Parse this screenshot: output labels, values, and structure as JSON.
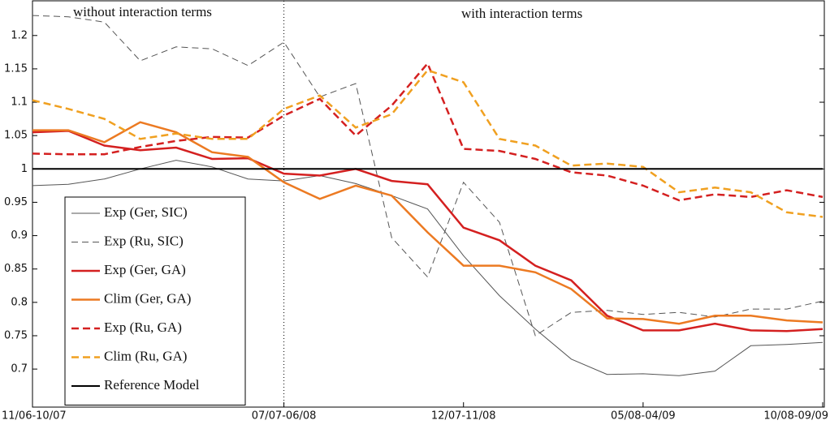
{
  "chart_data": {
    "type": "line",
    "annotations": [
      "without interaction terms",
      "with interaction terms"
    ],
    "categories": [
      "11/06-10/07",
      null,
      null,
      null,
      null,
      null,
      null,
      "07/07-06/08",
      null,
      null,
      null,
      null,
      "12/07-11/08",
      null,
      null,
      null,
      null,
      "05/08-04/09",
      null,
      null,
      null,
      null,
      "10/08-09/09"
    ],
    "series": [
      {
        "name": "Exp (Ger, SIC)",
        "color": "#555555",
        "style": "solid",
        "linewidth": 1,
        "values": [
          0.975,
          0.977,
          0.985,
          1.0,
          1.013,
          1.003,
          0.985,
          0.982,
          0.99,
          0.978,
          0.96,
          0.94,
          0.87,
          0.81,
          0.76,
          0.715,
          0.692,
          0.693,
          0.69,
          0.697,
          0.735,
          0.737,
          0.74
        ]
      },
      {
        "name": "Exp (Ru, SIC)",
        "color": "#555555",
        "style": "dashed",
        "linewidth": 1,
        "values": [
          1.23,
          1.228,
          1.22,
          1.162,
          1.183,
          1.18,
          1.155,
          1.19,
          1.108,
          1.128,
          0.897,
          0.838,
          0.98,
          0.92,
          0.75,
          0.785,
          0.788,
          0.782,
          0.785,
          0.778,
          0.79,
          0.79,
          0.802
        ]
      },
      {
        "name": "Exp (Ger, GA)",
        "color": "#d42020",
        "style": "solid",
        "linewidth": 2.5,
        "values": [
          1.055,
          1.057,
          1.035,
          1.028,
          1.032,
          1.015,
          1.016,
          0.993,
          0.99,
          1.0,
          0.982,
          0.977,
          0.912,
          0.893,
          0.855,
          0.833,
          0.78,
          0.758,
          0.758,
          0.768,
          0.758,
          0.757,
          0.76
        ]
      },
      {
        "name": "Clim (Ger, GA)",
        "color": "#ec7a22",
        "style": "solid",
        "linewidth": 2.5,
        "values": [
          1.058,
          1.058,
          1.04,
          1.07,
          1.055,
          1.025,
          1.018,
          0.98,
          0.955,
          0.975,
          0.96,
          0.905,
          0.855,
          0.855,
          0.845,
          0.82,
          0.776,
          0.775,
          0.768,
          0.78,
          0.78,
          0.773,
          0.77
        ]
      },
      {
        "name": "Exp (Ru, GA)",
        "color": "#d42020",
        "style": "dashed",
        "linewidth": 2.5,
        "values": [
          1.023,
          1.022,
          1.022,
          1.033,
          1.042,
          1.048,
          1.047,
          1.08,
          1.105,
          1.05,
          1.095,
          1.158,
          1.03,
          1.027,
          1.015,
          0.995,
          0.99,
          0.975,
          0.953,
          0.962,
          0.958,
          0.968,
          0.958
        ]
      },
      {
        "name": "Clim (Ru, GA)",
        "color": "#f0a020",
        "style": "dashed",
        "linewidth": 2.5,
        "values": [
          1.103,
          1.09,
          1.075,
          1.045,
          1.053,
          1.045,
          1.045,
          1.09,
          1.11,
          1.062,
          1.082,
          1.148,
          1.13,
          1.045,
          1.035,
          1.005,
          1.008,
          1.003,
          0.965,
          0.972,
          0.965,
          0.935,
          0.928
        ]
      },
      {
        "name": "Reference Model",
        "color": "#000000",
        "style": "solid",
        "linewidth": 2,
        "values": [
          1,
          1,
          1,
          1,
          1,
          1,
          1,
          1,
          1,
          1,
          1,
          1,
          1,
          1,
          1,
          1,
          1,
          1,
          1,
          1,
          1,
          1,
          1
        ]
      }
    ],
    "ylim": [
      0.643,
      1.252
    ],
    "yticks": [
      0.7,
      0.75,
      0.8,
      0.85,
      0.9,
      0.95,
      1,
      1.05,
      1.1,
      1.15,
      1.2
    ],
    "grid": false,
    "legend": "lower left"
  }
}
